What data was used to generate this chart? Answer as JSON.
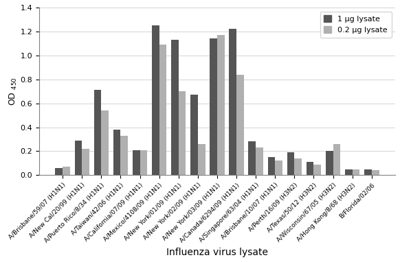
{
  "categories": [
    "A/Brisbane/59/07 (H1N1)",
    "A/New Cal/20/99 (H1N1)",
    "A/Puerto Rico/8/34 (H1N1)",
    "A/Taiwan/42/06 (H1N1)",
    "A/California/07/09 (H1N1)",
    "A/Mexico/4108/09 (H1N1)",
    "A/New York/01/09 (H1N1)",
    "A/New York/02/09 (H1N1)",
    "A/New York/03/09 (H1N1)",
    "A/Canada/6294/09 (H1N1)",
    "A/Singapore/63/04 (H1N1)",
    "A/Brisbane/10/07 (H1N1)",
    "A/Perth/16/09 (H3N2)",
    "A/Texas/50/12 (H3N2)",
    "A/Wisconsin/67/05 (H3N2)",
    "A/Hong Kong/8/68 (H3N2)",
    "B/Florida/02/06"
  ],
  "values_1ug": [
    0.06,
    0.29,
    0.71,
    0.38,
    0.21,
    1.25,
    1.13,
    0.67,
    1.14,
    1.22,
    0.28,
    0.15,
    0.19,
    0.11,
    0.2,
    0.05,
    0.05
  ],
  "values_02ug": [
    0.07,
    0.22,
    0.54,
    0.33,
    0.21,
    1.09,
    0.7,
    0.26,
    1.17,
    0.84,
    0.23,
    0.12,
    0.14,
    0.09,
    0.26,
    0.05,
    0.04
  ],
  "color_1ug": "#555555",
  "color_02ug": "#b0b0b0",
  "ylabel": "OD",
  "ylabel_sub": "450",
  "xlabel": "Influenza virus lysate",
  "ylim": [
    0,
    1.4
  ],
  "yticks": [
    0,
    0.2,
    0.4,
    0.6,
    0.8,
    1.0,
    1.2,
    1.4
  ],
  "legend_1ug": "1 μg lysate",
  "legend_02ug": "0.2 μg lysate",
  "bar_width": 0.38,
  "figsize": [
    5.82,
    3.82
  ],
  "dpi": 100,
  "tick_rotation": 45,
  "tick_fontsize": 6.5,
  "xlabel_fontsize": 10,
  "ylabel_fontsize": 9,
  "legend_fontsize": 8
}
